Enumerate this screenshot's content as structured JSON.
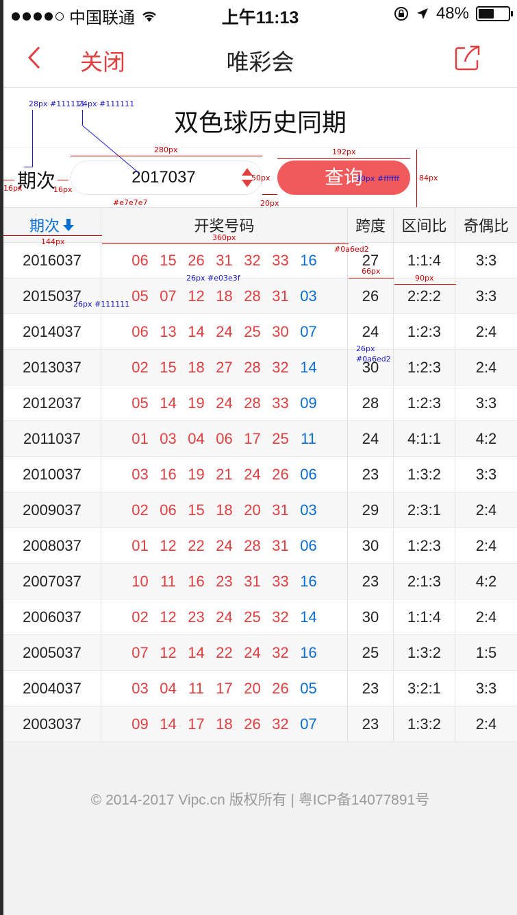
{
  "status": {
    "carrier": "中国联通",
    "time": "上午11:13",
    "battery": "48%",
    "battery_level": 0.48
  },
  "nav": {
    "close_label": "关闭",
    "title": "唯彩会",
    "icons": [
      "back-icon",
      "share-icon"
    ]
  },
  "hero": {
    "title": "双色球历史同期"
  },
  "query": {
    "label": "期次",
    "value": "2017037",
    "button_label": "查询"
  },
  "table": {
    "headers": [
      "期次",
      "开奖号码",
      "跨度",
      "区间比",
      "奇偶比"
    ],
    "rows": [
      {
        "period": "2016037",
        "red": [
          "06",
          "15",
          "26",
          "31",
          "32",
          "33"
        ],
        "blue": "16",
        "span": "27",
        "zone": "1:1:4",
        "parity": "3:3"
      },
      {
        "period": "2015037",
        "red": [
          "05",
          "07",
          "12",
          "18",
          "28",
          "31"
        ],
        "blue": "03",
        "span": "26",
        "zone": "2:2:2",
        "parity": "3:3"
      },
      {
        "period": "2014037",
        "red": [
          "06",
          "13",
          "14",
          "24",
          "25",
          "30"
        ],
        "blue": "07",
        "span": "24",
        "zone": "1:2:3",
        "parity": "2:4"
      },
      {
        "period": "2013037",
        "red": [
          "02",
          "15",
          "18",
          "27",
          "28",
          "32"
        ],
        "blue": "14",
        "span": "30",
        "zone": "1:2:3",
        "parity": "2:4"
      },
      {
        "period": "2012037",
        "red": [
          "05",
          "14",
          "19",
          "24",
          "28",
          "33"
        ],
        "blue": "09",
        "span": "28",
        "zone": "1:2:3",
        "parity": "3:3"
      },
      {
        "period": "2011037",
        "red": [
          "01",
          "03",
          "04",
          "06",
          "17",
          "25"
        ],
        "blue": "11",
        "span": "24",
        "zone": "4:1:1",
        "parity": "4:2"
      },
      {
        "period": "2010037",
        "red": [
          "03",
          "16",
          "19",
          "21",
          "24",
          "26"
        ],
        "blue": "06",
        "span": "23",
        "zone": "1:3:2",
        "parity": "3:3"
      },
      {
        "period": "2009037",
        "red": [
          "02",
          "06",
          "15",
          "18",
          "20",
          "31"
        ],
        "blue": "03",
        "span": "29",
        "zone": "2:3:1",
        "parity": "2:4"
      },
      {
        "period": "2008037",
        "red": [
          "01",
          "12",
          "22",
          "24",
          "28",
          "31"
        ],
        "blue": "06",
        "span": "30",
        "zone": "1:2:3",
        "parity": "2:4"
      },
      {
        "period": "2007037",
        "red": [
          "10",
          "11",
          "16",
          "23",
          "31",
          "33"
        ],
        "blue": "16",
        "span": "23",
        "zone": "2:1:3",
        "parity": "4:2"
      },
      {
        "period": "2006037",
        "red": [
          "02",
          "12",
          "23",
          "24",
          "25",
          "32"
        ],
        "blue": "14",
        "span": "30",
        "zone": "1:1:4",
        "parity": "2:4"
      },
      {
        "period": "2005037",
        "red": [
          "07",
          "12",
          "14",
          "22",
          "24",
          "32"
        ],
        "blue": "16",
        "span": "25",
        "zone": "1:3:2",
        "parity": "1:5"
      },
      {
        "period": "2004037",
        "red": [
          "03",
          "04",
          "11",
          "17",
          "20",
          "26"
        ],
        "blue": "05",
        "span": "23",
        "zone": "3:2:1",
        "parity": "3:3"
      },
      {
        "period": "2003037",
        "red": [
          "09",
          "14",
          "17",
          "18",
          "26",
          "32"
        ],
        "blue": "07",
        "span": "23",
        "zone": "1:3:2",
        "parity": "2:4"
      }
    ]
  },
  "footer": {
    "text": "© 2014-2017 Vipc.cn 版权所有  |  粤ICP备14077891号"
  },
  "colors": {
    "accent_red": "#e03e3f",
    "button_red": "#f05a5b",
    "blue": "#0a6ed2",
    "border": "#e7e7e7",
    "text": "#111111"
  },
  "annotations": {
    "a1": "28px #111111",
    "a2": "24px #111111",
    "a3": "280px",
    "a4": "192px",
    "a5": "84px",
    "a6": "50px",
    "a7": "16px",
    "a8": "16px",
    "a9": "#e7e7e7",
    "a10": "20px",
    "a11": "30px #ffffff",
    "a12": "144px",
    "a13": "360px",
    "a14": "#0a6ed2",
    "a15": "26px #e03e3f",
    "a16": "66px",
    "a17": "90px",
    "a18": "26px #111111",
    "a19": "26px",
    "a20": "#0a6ed2"
  }
}
